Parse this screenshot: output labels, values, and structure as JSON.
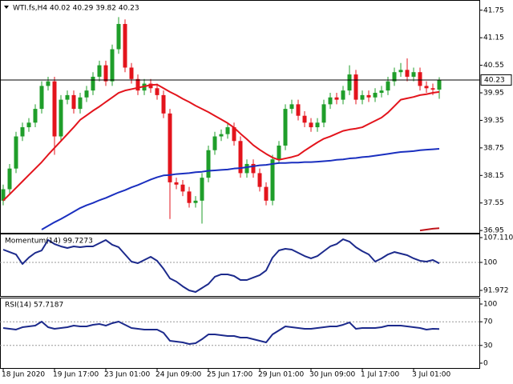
{
  "chart_data": [
    {
      "type": "candlestick",
      "title": "WTI.fs,H4  40.02 40.29 39.82 40.23",
      "categories": [
        "18 Jun 2020",
        null,
        null,
        null,
        null,
        null,
        null,
        null,
        "19 Jun 17:00",
        null,
        null,
        null,
        null,
        null,
        null,
        null,
        "23 Jun 01:00",
        null,
        null,
        null,
        null,
        null,
        null,
        null,
        "24 Jun 09:00",
        null,
        null,
        null,
        null,
        null,
        null,
        null,
        "25 Jun 17:00",
        null,
        null,
        null,
        null,
        null,
        null,
        null,
        "29 Jun 01:00",
        null,
        null,
        null,
        null,
        null,
        null,
        null,
        "30 Jun 09:00",
        null,
        null,
        null,
        null,
        null,
        null,
        null,
        "1 Jul 17:00",
        null,
        null,
        null,
        null,
        null,
        null,
        null,
        "3 Jul 01:00",
        null,
        null,
        null,
        null
      ],
      "open": [
        37.6,
        37.85,
        38.3,
        39.0,
        39.2,
        39.3,
        39.6,
        40.1,
        40.2,
        39.0,
        39.8,
        39.9,
        39.6,
        39.85,
        40.0,
        40.3,
        40.55,
        40.2,
        40.9,
        41.45,
        40.5,
        40.25,
        40.0,
        40.15,
        40.05,
        39.9,
        39.5,
        38.0,
        37.95,
        37.8,
        37.55,
        37.6,
        38.1,
        38.7,
        39.0,
        39.05,
        39.2,
        38.9,
        38.2,
        38.4,
        38.2,
        37.9,
        37.6,
        38.5,
        38.8,
        39.6,
        39.7,
        39.45,
        39.3,
        39.2,
        39.3,
        39.7,
        39.85,
        39.8,
        40.0,
        40.35,
        39.8,
        39.9,
        39.85,
        39.95,
        40.0,
        40.2,
        40.4,
        40.45,
        40.3,
        40.4,
        40.1,
        40.05,
        40.02
      ],
      "high": [
        37.95,
        38.4,
        39.1,
        39.3,
        39.4,
        39.7,
        40.2,
        40.3,
        40.3,
        39.9,
        40.0,
        40.0,
        39.95,
        40.1,
        40.4,
        40.65,
        40.65,
        41.0,
        41.6,
        41.55,
        40.6,
        40.35,
        40.25,
        40.25,
        40.15,
        40.0,
        39.6,
        38.1,
        38.05,
        37.9,
        37.7,
        38.2,
        38.8,
        39.1,
        39.15,
        39.3,
        39.3,
        39.0,
        38.5,
        38.5,
        38.3,
        38.0,
        38.6,
        38.9,
        39.7,
        39.8,
        39.8,
        39.55,
        39.4,
        39.4,
        39.8,
        39.95,
        39.95,
        40.1,
        40.55,
        40.45,
        40.0,
        40.0,
        40.05,
        40.1,
        40.3,
        40.5,
        40.6,
        40.7,
        40.5,
        40.5,
        40.2,
        40.15,
        40.29
      ],
      "low": [
        37.5,
        37.75,
        38.2,
        38.9,
        39.1,
        39.2,
        39.5,
        40.0,
        38.6,
        38.9,
        39.7,
        39.5,
        39.5,
        39.75,
        39.9,
        40.2,
        40.1,
        40.1,
        40.8,
        40.4,
        40.15,
        39.9,
        39.9,
        39.95,
        39.8,
        39.4,
        37.2,
        37.85,
        37.7,
        37.45,
        37.45,
        37.1,
        38.0,
        38.6,
        38.9,
        38.95,
        38.8,
        38.1,
        38.1,
        38.1,
        37.8,
        37.5,
        37.5,
        38.4,
        38.7,
        39.5,
        39.35,
        39.2,
        39.1,
        39.1,
        39.2,
        39.6,
        39.7,
        39.7,
        39.9,
        39.7,
        39.7,
        39.75,
        39.75,
        39.85,
        39.9,
        40.1,
        40.3,
        40.2,
        40.2,
        40.0,
        39.95,
        39.9,
        39.82
      ],
      "close": [
        37.85,
        38.3,
        39.0,
        39.2,
        39.3,
        39.6,
        40.1,
        40.2,
        39.0,
        39.8,
        39.9,
        39.6,
        39.85,
        40.0,
        40.3,
        40.55,
        40.2,
        40.9,
        41.45,
        40.5,
        40.25,
        40.0,
        40.15,
        40.05,
        39.9,
        39.5,
        38.0,
        37.95,
        37.8,
        37.55,
        37.6,
        38.1,
        38.7,
        39.0,
        39.05,
        39.2,
        38.9,
        38.2,
        38.4,
        38.2,
        37.9,
        37.6,
        38.5,
        38.8,
        39.6,
        39.7,
        39.45,
        39.3,
        39.2,
        39.3,
        39.7,
        39.85,
        39.8,
        40.0,
        40.35,
        39.8,
        39.9,
        39.85,
        39.95,
        40.0,
        40.2,
        40.4,
        40.45,
        40.3,
        40.4,
        40.1,
        40.05,
        40.02,
        40.23
      ],
      "up_color": "#1f9e2a",
      "down_color": "#e3141c",
      "series": [
        {
          "color": "#e3141c",
          "values": [
            37.6,
            37.74,
            37.88,
            38.02,
            38.16,
            38.3,
            38.44,
            38.6,
            38.75,
            38.9,
            39.05,
            39.2,
            39.36,
            39.46,
            39.56,
            39.65,
            39.75,
            39.85,
            39.95,
            40.0,
            40.03,
            40.06,
            40.09,
            40.12,
            40.13,
            40.05,
            39.97,
            39.9,
            39.82,
            39.75,
            39.67,
            39.6,
            39.53,
            39.45,
            39.37,
            39.29,
            39.19,
            39.06,
            38.94,
            38.81,
            38.71,
            38.62,
            38.54,
            38.49,
            38.52,
            38.55,
            38.59,
            38.69,
            38.78,
            38.87,
            38.95,
            39.0,
            39.06,
            39.12,
            39.15,
            39.17,
            39.2,
            39.27,
            39.34,
            39.41,
            39.52,
            39.66,
            39.8,
            39.83,
            39.86,
            39.9,
            39.92,
            39.95,
            39.97
          ]
        },
        {
          "color": "#1a2fbf",
          "values": [
            null,
            null,
            null,
            null,
            null,
            null,
            36.97,
            37.05,
            37.13,
            37.2,
            37.28,
            37.36,
            37.44,
            37.5,
            37.55,
            37.61,
            37.66,
            37.72,
            37.78,
            37.83,
            37.89,
            37.94,
            38.0,
            38.06,
            38.11,
            38.15,
            38.16,
            38.18,
            38.19,
            38.2,
            38.22,
            38.23,
            38.25,
            38.26,
            38.27,
            38.28,
            38.3,
            38.31,
            38.33,
            38.35,
            38.37,
            38.38,
            38.4,
            38.42,
            38.42,
            38.43,
            38.43,
            38.44,
            38.44,
            38.45,
            38.46,
            38.47,
            38.49,
            38.5,
            38.52,
            38.53,
            38.55,
            38.56,
            38.58,
            38.6,
            38.62,
            38.64,
            38.66,
            38.67,
            38.68,
            38.7,
            38.71,
            38.72,
            38.73
          ]
        },
        {
          "color": "#c0141a",
          "values": [
            null,
            null,
            null,
            null,
            null,
            null,
            null,
            null,
            null,
            null,
            null,
            null,
            null,
            null,
            null,
            null,
            null,
            null,
            null,
            null,
            null,
            null,
            null,
            null,
            null,
            null,
            null,
            null,
            null,
            null,
            null,
            null,
            null,
            null,
            null,
            null,
            null,
            null,
            null,
            null,
            null,
            null,
            null,
            null,
            null,
            null,
            null,
            null,
            null,
            null,
            null,
            null,
            null,
            null,
            null,
            null,
            null,
            null,
            null,
            null,
            null,
            null,
            null,
            null,
            null,
            36.95,
            36.97,
            36.99,
            37.0
          ]
        }
      ],
      "ylim": [
        36.9,
        41.92
      ],
      "yticks": [
        36.95,
        37.55,
        38.15,
        38.75,
        39.35,
        39.95,
        40.55,
        41.15,
        41.75
      ],
      "price_line": 40.23
    },
    {
      "type": "line",
      "title": "Momentum(14) 99.7273",
      "series": [
        {
          "color": "#1c2a8c",
          "values": [
            103.67,
            102.98,
            102.29,
            99.54,
            101.38,
            102.75,
            103.44,
            106.42,
            105.27,
            104.59,
            104.13,
            104.59,
            104.36,
            104.59,
            104.59,
            105.5,
            106.42,
            105.05,
            104.36,
            102.29,
            100.23,
            99.77,
            100.69,
            101.6,
            100.46,
            98.16,
            95.41,
            94.49,
            93.12,
            91.97,
            91.51,
            92.66,
            93.8,
            95.87,
            96.56,
            96.56,
            96.1,
            94.95,
            94.95,
            95.64,
            96.33,
            97.7,
            101.38,
            103.44,
            103.9,
            103.67,
            102.75,
            101.83,
            101.15,
            101.83,
            103.21,
            104.59,
            105.27,
            106.65,
            105.96,
            104.36,
            103.21,
            102.29,
            100.23,
            101.15,
            102.29,
            102.98,
            102.52,
            102.06,
            101.15,
            100.46,
            100.23,
            100.69,
            99.7273
          ]
        }
      ],
      "ylim": [
        90.59,
        108.03
      ],
      "yticks": [
        91.972,
        100,
        107.1101
      ],
      "hlines": [
        100
      ]
    },
    {
      "type": "line",
      "title": "RSI(14) 57.7187",
      "series": [
        {
          "color": "#1c2a8c",
          "values": [
            59.5,
            58.1,
            56.8,
            60.8,
            62.2,
            63.5,
            70.3,
            60.8,
            58.1,
            59.5,
            60.8,
            63.5,
            62.2,
            62.2,
            64.9,
            66.2,
            63.5,
            67.6,
            70.3,
            64.9,
            59.5,
            58.1,
            56.8,
            56.8,
            56.8,
            51.4,
            37.8,
            36.5,
            35.1,
            32.4,
            33.8,
            40.5,
            48.6,
            48.6,
            47.3,
            45.9,
            45.9,
            43.2,
            43.2,
            40.5,
            37.8,
            35.1,
            48.6,
            55.4,
            62.2,
            60.8,
            59.5,
            58.1,
            58.1,
            59.5,
            60.8,
            62.2,
            62.2,
            64.9,
            68.9,
            58.1,
            59.5,
            59.5,
            59.5,
            60.8,
            63.5,
            63.5,
            63.5,
            62.2,
            60.8,
            59.5,
            56.8,
            58.1,
            57.7187
          ]
        }
      ],
      "ylim": [
        -6.8,
        109.5
      ],
      "yticks": [
        0,
        30,
        70,
        100
      ],
      "hlines": [
        30,
        70
      ]
    }
  ]
}
